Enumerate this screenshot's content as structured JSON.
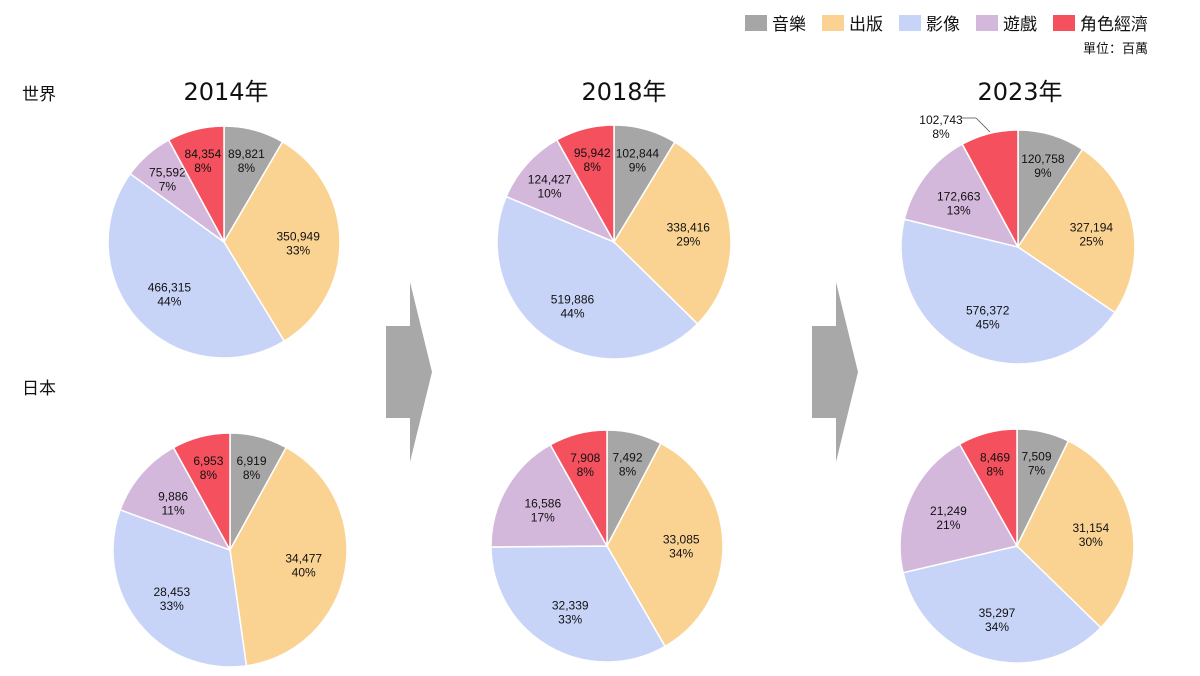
{
  "legend": {
    "items": [
      {
        "label": "音樂",
        "color": "#a6a6a6"
      },
      {
        "label": "出版",
        "color": "#fad392"
      },
      {
        "label": "影像",
        "color": "#c7d4f8"
      },
      {
        "label": "遊戲",
        "color": "#d4b8dc"
      },
      {
        "label": "角色經濟",
        "color": "#f4505e"
      }
    ],
    "unit": "單位：百萬"
  },
  "row_labels": {
    "world": "世界",
    "japan": "日本"
  },
  "years": [
    "2014年",
    "2018年",
    "2023年"
  ],
  "chart_data": [
    {
      "type": "pie",
      "region": "世界",
      "year": "2014年",
      "categories": [
        "音樂",
        "出版",
        "影像",
        "遊戲",
        "角色經濟"
      ],
      "values": [
        89821,
        350949,
        466315,
        75592,
        84354
      ],
      "value_labels": [
        "89,821",
        "350,949",
        "466,315",
        "75,592",
        "84,354"
      ],
      "percent_labels": [
        "8%",
        "33%",
        "44%",
        "7%",
        "8%"
      ]
    },
    {
      "type": "pie",
      "region": "世界",
      "year": "2018年",
      "categories": [
        "音樂",
        "出版",
        "影像",
        "遊戲",
        "角色經濟"
      ],
      "values": [
        102844,
        338416,
        519886,
        124427,
        95942
      ],
      "value_labels": [
        "102,844",
        "338,416",
        "519,886",
        "124,427",
        "95,942"
      ],
      "percent_labels": [
        "9%",
        "29%",
        "44%",
        "10%",
        "8%"
      ]
    },
    {
      "type": "pie",
      "region": "世界",
      "year": "2023年",
      "categories": [
        "音樂",
        "出版",
        "影像",
        "遊戲",
        "角色經濟"
      ],
      "values": [
        120758,
        327194,
        576372,
        172663,
        102743
      ],
      "value_labels": [
        "120,758",
        "327,194",
        "576,372",
        "172,663",
        "102,743"
      ],
      "percent_labels": [
        "9%",
        "25%",
        "45%",
        "13%",
        "8%"
      ]
    },
    {
      "type": "pie",
      "region": "日本",
      "year": "2014年",
      "categories": [
        "音樂",
        "出版",
        "影像",
        "遊戲",
        "角色經濟"
      ],
      "values": [
        6919,
        34477,
        28453,
        9886,
        6953
      ],
      "value_labels": [
        "6,919",
        "34,477",
        "28,453",
        "9,886",
        "6,953"
      ],
      "percent_labels": [
        "8%",
        "40%",
        "33%",
        "11%",
        "8%"
      ]
    },
    {
      "type": "pie",
      "region": "日本",
      "year": "2018年",
      "categories": [
        "音樂",
        "出版",
        "影像",
        "遊戲",
        "角色經濟"
      ],
      "values": [
        7492,
        33085,
        32339,
        16586,
        7908
      ],
      "value_labels": [
        "7,492",
        "33,085",
        "32,339",
        "16,586",
        "7,908"
      ],
      "percent_labels": [
        "8%",
        "34%",
        "33%",
        "17%",
        "8%"
      ]
    },
    {
      "type": "pie",
      "region": "日本",
      "year": "2023年",
      "categories": [
        "音樂",
        "出版",
        "影像",
        "遊戲",
        "角色經濟"
      ],
      "values": [
        7509,
        31154,
        35297,
        21249,
        8469
      ],
      "value_labels": [
        "7,509",
        "31,154",
        "35,297",
        "21,249",
        "8,469"
      ],
      "percent_labels": [
        "7%",
        "30%",
        "34%",
        "21%",
        "8%"
      ]
    }
  ]
}
